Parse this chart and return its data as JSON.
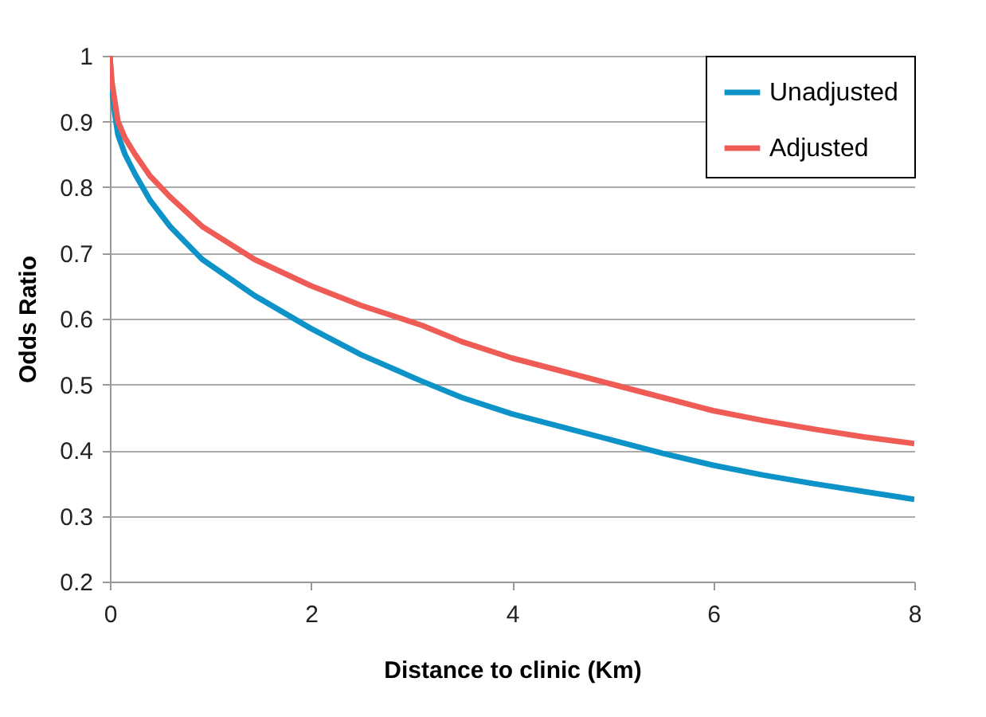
{
  "chart_data": {
    "type": "line",
    "xlabel": "Distance to clinic (Km)",
    "ylabel": "Odds Ratio",
    "x": [
      0,
      0.02,
      0.05,
      0.08,
      0.15,
      0.25,
      0.4,
      0.6,
      0.92,
      1.44,
      2,
      2.5,
      3.1,
      3.5,
      4,
      4.5,
      5,
      5.5,
      6,
      6.5,
      7,
      7.5,
      8
    ],
    "series": [
      {
        "name": "Unadjusted",
        "color": "#0e93c8",
        "values": [
          1,
          0.95,
          0.91,
          0.88,
          0.85,
          0.82,
          0.78,
          0.74,
          0.69,
          0.635,
          0.585,
          0.545,
          0.505,
          0.48,
          0.455,
          0.435,
          0.415,
          0.395,
          0.377,
          0.362,
          0.349,
          0.337,
          0.325
        ]
      },
      {
        "name": "Adjusted",
        "color": "#ef5c56",
        "values": [
          1,
          0.96,
          0.93,
          0.9,
          0.875,
          0.85,
          0.817,
          0.785,
          0.74,
          0.69,
          0.65,
          0.62,
          0.59,
          0.565,
          0.54,
          0.52,
          0.5,
          0.48,
          0.46,
          0.445,
          0.432,
          0.42,
          0.41
        ]
      }
    ],
    "xlim": [
      0,
      8
    ],
    "xticks": [
      0,
      2,
      4,
      6,
      8
    ],
    "ylim": [
      0.2,
      1
    ],
    "yticks": [
      0.2,
      0.3,
      0.4,
      0.5,
      0.6,
      0.7,
      0.8,
      0.9,
      1
    ],
    "grid": "y",
    "legend": "top right",
    "marker": "none",
    "line_style": "solid"
  }
}
